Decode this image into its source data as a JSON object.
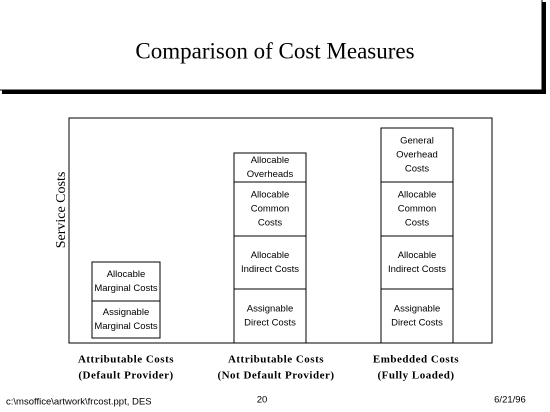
{
  "header": {
    "title": "Comparison of Cost Measures"
  },
  "y_axis_label": "Service Costs",
  "columns": [
    {
      "label": [
        "Attributable Costs",
        "(Default Provider)"
      ],
      "boxes": [
        [
          "Assignable",
          "Marginal Costs"
        ],
        [
          "Allocable",
          "Marginal Costs"
        ]
      ]
    },
    {
      "label": [
        "Attributable Costs",
        "(Not Default Provider)"
      ],
      "boxes": [
        [
          "Assignable",
          "Direct Costs"
        ],
        [
          "Allocable",
          "Indirect Costs"
        ],
        [
          "Allocable",
          "Common",
          "Costs"
        ],
        [
          "Allocable",
          "Overheads"
        ]
      ]
    },
    {
      "label": [
        "Embedded Costs",
        "(Fully Loaded)"
      ],
      "boxes": [
        [
          "Assignable",
          "Direct Costs"
        ],
        [
          "Allocable",
          "Indirect Costs"
        ],
        [
          "Allocable",
          "Common",
          "Costs"
        ],
        [
          "General",
          "Overhead",
          "Costs"
        ]
      ]
    }
  ],
  "footer": {
    "file": "c:\\msoffice\\artwork\\frcost.ppt, DES",
    "page": "20",
    "date": "6/21/96"
  }
}
